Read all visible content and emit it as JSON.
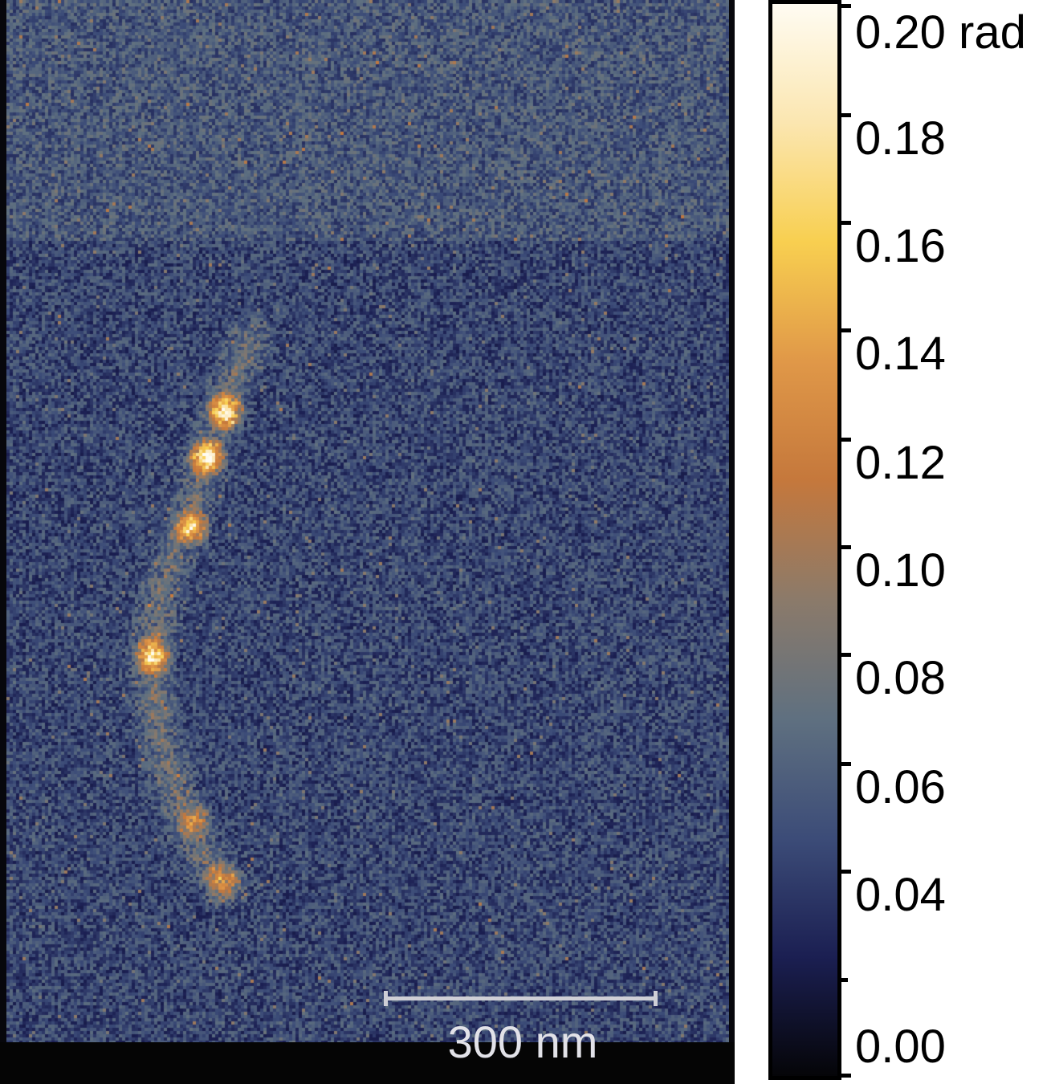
{
  "colors": {
    "background": "#07070c",
    "scalebar": "#cfcfd6",
    "colormap": [
      "#050508",
      "#1b1f52",
      "#3c4c78",
      "#5f7080",
      "#8b7a6a",
      "#c5783c",
      "#e09848",
      "#f8cf50",
      "#fbe6b0",
      "#fffcf2"
    ]
  },
  "scalebar": {
    "label": "300 nm"
  },
  "colorbar": {
    "unit": "rad",
    "range": [
      0.0,
      0.2
    ],
    "tick_labels": [
      "0.20 rad",
      "0.18",
      "0.16",
      "0.14",
      "0.12",
      "0.10",
      "0.08",
      "0.06",
      "0.04",
      "0.00"
    ]
  }
}
